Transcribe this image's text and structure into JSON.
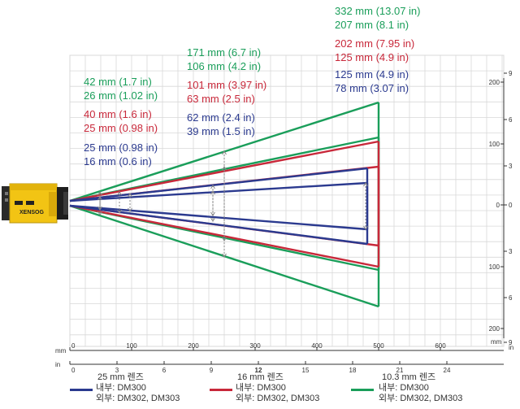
{
  "colors": {
    "green": "#1a9e5a",
    "red": "#c8283a",
    "blue": "#2b3a8f",
    "grid": "#d8d8d8"
  },
  "axes": {
    "mm_unit": "mm",
    "in_unit": "in",
    "mm_ticks": [
      "0",
      "100",
      "200",
      "300",
      "400",
      "500",
      "600"
    ],
    "in_ticks": [
      "0",
      "3",
      "6",
      "9",
      "12",
      "15",
      "18",
      "21",
      "24"
    ],
    "right_mm_ticks": [
      "200",
      "100",
      "0",
      "100",
      "200"
    ],
    "right_in_ticks": [
      "9",
      "6",
      "3",
      "0",
      "3",
      "6",
      "9"
    ],
    "right_mm_unit": "mm",
    "right_in_unit": "in"
  },
  "labels": {
    "green_far": [
      "332 mm (13.07 in)",
      "207 mm (8.1 in)"
    ],
    "red_far": [
      "202 mm (7.95 in)",
      "125 mm (4.9 in)"
    ],
    "blue_far": [
      "125 mm (4.9 in)",
      "78 mm (3.07 in)"
    ],
    "green_mid": [
      "171 mm (6.7 in)",
      "106 mm (4.2 in)"
    ],
    "red_mid": [
      "101 mm (3.97 in)",
      "63 mm (2.5 in)"
    ],
    "blue_mid": [
      "62 mm (2.4 in)",
      "39 mm (1.5 in)"
    ],
    "green_near": [
      "42 mm (1.7 in)",
      "26 mm (1.02 in)"
    ],
    "red_near": [
      "40 mm (1.6 in)",
      "25 mm (0.98 in)"
    ],
    "blue_near": [
      "25 mm (0.98 in)",
      "16 mm (0.6 in)"
    ]
  },
  "camera": {
    "brand": "XENSOG"
  },
  "legend": [
    {
      "title": "25 mm 렌즈",
      "inner": "내부: DM300",
      "outer": "외부: DM302, DM303",
      "color": "#2b3a8f"
    },
    {
      "title": "16 mm 렌즈",
      "inner": "내부: DM300",
      "outer": "외부: DM302, DM303",
      "color": "#c8283a"
    },
    {
      "title": "10.3 mm 렌즈",
      "inner": "내부: DM300",
      "outer": "외부: DM302, DM303",
      "color": "#1a9e5a"
    }
  ]
}
